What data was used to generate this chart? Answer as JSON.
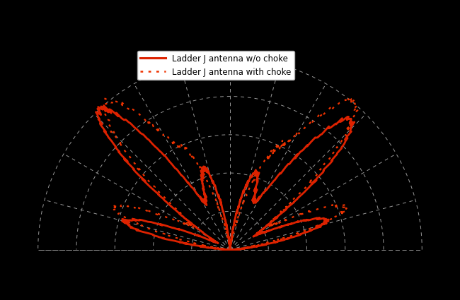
{
  "background_color": "#000000",
  "grid_color": "#999999",
  "line1_color": "#dd2200",
  "line2_color": "#ee3300",
  "legend_bg": "#ffffff",
  "legend_text_color": "#000000",
  "legend1_label": "Ladder J antenna w/o choke",
  "legend2_label": "Ladder J antenna with choke",
  "r_ticks": [
    0.2,
    0.4,
    0.6,
    0.8,
    1.0
  ],
  "theta_spokes_deg": [
    0,
    15,
    30,
    45,
    60,
    75,
    90,
    105,
    120,
    135,
    150,
    165,
    180
  ],
  "figsize": [
    6.5,
    4.25
  ],
  "dpi": 100
}
